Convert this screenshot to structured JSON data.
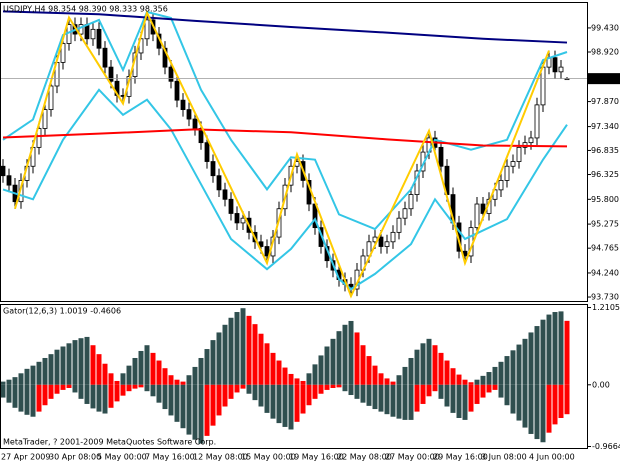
{
  "chart_data": [
    {
      "type": "candlestick",
      "title": "USDJPY,H4  98.354 98.390 98.333 98.356",
      "categories": [
        "27 Apr 2009",
        null,
        null,
        null,
        null,
        null,
        null,
        null,
        "30 Apr 08:00",
        null,
        null,
        null,
        null,
        null,
        null,
        null,
        "5 May 00:00",
        null,
        null,
        null,
        null,
        null,
        null,
        null,
        "7 May 16:00",
        null,
        null,
        null,
        null,
        null,
        null,
        null,
        "12 May 08:00",
        null,
        null,
        null,
        null,
        null,
        null,
        null,
        "15 May 00:00",
        null,
        null,
        null,
        null,
        null,
        null,
        null,
        "19 May 16:00",
        null,
        null,
        null,
        null,
        null,
        null,
        null,
        "22 May 08:00",
        null,
        null,
        null,
        null,
        null,
        null,
        null,
        "27 May 00:00",
        null,
        null,
        null,
        null,
        null,
        null,
        null,
        "29 May 16:00",
        null,
        null,
        null,
        null,
        null,
        null,
        null,
        "3 Jun 08:00",
        null,
        null,
        null,
        null,
        null,
        null,
        null,
        "4 Jun 00:00",
        null,
        null,
        null,
        null,
        null,
        null
      ],
      "open": [
        96.5,
        96.3,
        96.1,
        95.75,
        96.2,
        96.5,
        96.9,
        97.3,
        97.7,
        98.2,
        98.7,
        99.1,
        99.5,
        99.3,
        99.5,
        99.2,
        99.4,
        99.0,
        98.6,
        98.3,
        98.0,
        97.98,
        98.4,
        98.9,
        99.2,
        99.6,
        99.3,
        99.0,
        98.6,
        98.3,
        97.9,
        97.7,
        97.5,
        97.3,
        97.0,
        96.6,
        96.3,
        96.0,
        95.8,
        95.5,
        95.3,
        95.4,
        95.1,
        94.9,
        94.8,
        94.6,
        95.0,
        95.6,
        96.1,
        96.5,
        96.6,
        96.2,
        95.7,
        95.2,
        94.8,
        94.5,
        94.3,
        94.1,
        94.0,
        93.9,
        94.3,
        94.6,
        94.9,
        95.0,
        94.8,
        94.9,
        95.1,
        95.4,
        95.6,
        95.9,
        96.4,
        96.8,
        97.1,
        96.9,
        96.5,
        95.9,
        95.3,
        94.7,
        94.6,
        95.2,
        95.7,
        95.5,
        95.8,
        96.0,
        96.2,
        96.5,
        96.6,
        96.9,
        97.0,
        97.1,
        97.8,
        98.6,
        98.8,
        98.5,
        98.354
      ],
      "high": [
        96.65,
        96.45,
        96.25,
        96.35,
        96.65,
        97.05,
        97.45,
        97.85,
        98.35,
        98.85,
        99.25,
        99.65,
        99.65,
        99.65,
        99.65,
        99.55,
        99.55,
        99.15,
        98.75,
        98.45,
        98.15,
        98.55,
        99.05,
        99.35,
        99.75,
        99.75,
        99.45,
        99.15,
        98.75,
        98.45,
        98.05,
        97.85,
        97.65,
        97.45,
        97.15,
        96.75,
        96.45,
        96.15,
        95.95,
        95.65,
        95.55,
        95.55,
        95.25,
        95.05,
        94.95,
        95.15,
        95.75,
        96.25,
        96.65,
        96.75,
        96.75,
        96.35,
        95.85,
        95.35,
        94.95,
        94.65,
        94.45,
        94.25,
        94.15,
        94.45,
        94.75,
        95.05,
        95.15,
        95.15,
        95.05,
        95.25,
        95.55,
        95.75,
        96.05,
        96.55,
        96.95,
        97.25,
        97.25,
        97.05,
        96.65,
        96.05,
        95.45,
        94.85,
        95.35,
        95.85,
        95.85,
        95.95,
        96.15,
        96.35,
        96.65,
        96.75,
        97.05,
        97.15,
        97.25,
        97.95,
        98.75,
        98.95,
        98.95,
        98.75,
        98.39
      ],
      "low": [
        96.15,
        95.95,
        95.6,
        95.6,
        96.05,
        96.35,
        96.75,
        97.15,
        97.55,
        98.05,
        98.55,
        98.95,
        99.15,
        99.15,
        99.05,
        99.05,
        98.85,
        98.45,
        98.15,
        97.85,
        97.83,
        97.83,
        98.25,
        98.75,
        99.05,
        99.15,
        98.85,
        98.45,
        98.15,
        97.75,
        97.55,
        97.35,
        97.15,
        96.85,
        96.45,
        96.15,
        95.85,
        95.65,
        95.35,
        95.15,
        95.15,
        94.95,
        94.75,
        94.65,
        94.45,
        94.45,
        94.85,
        95.45,
        95.95,
        96.35,
        96.05,
        95.55,
        95.05,
        94.65,
        94.35,
        94.15,
        93.95,
        93.85,
        93.75,
        93.75,
        94.15,
        94.45,
        94.75,
        94.65,
        94.65,
        94.75,
        94.95,
        95.25,
        95.45,
        95.75,
        96.25,
        96.65,
        96.75,
        96.35,
        95.75,
        95.15,
        94.55,
        94.45,
        94.45,
        95.05,
        95.35,
        95.35,
        95.65,
        95.85,
        96.05,
        96.35,
        96.45,
        96.75,
        96.85,
        96.95,
        97.65,
        98.45,
        98.35,
        98.35,
        98.333
      ],
      "close": [
        96.3,
        96.1,
        95.75,
        96.2,
        96.5,
        96.9,
        97.3,
        97.7,
        98.2,
        98.7,
        99.1,
        99.5,
        99.3,
        99.5,
        99.2,
        99.4,
        99.0,
        98.6,
        98.3,
        98.0,
        97.98,
        98.4,
        98.9,
        99.2,
        99.6,
        99.3,
        99.0,
        98.6,
        98.3,
        97.9,
        97.7,
        97.5,
        97.3,
        97.0,
        96.6,
        96.3,
        96.0,
        95.8,
        95.5,
        95.3,
        95.4,
        95.1,
        94.9,
        94.8,
        94.6,
        95.0,
        95.6,
        96.1,
        96.5,
        96.6,
        96.2,
        95.7,
        95.2,
        94.8,
        94.5,
        94.3,
        94.1,
        94.0,
        93.9,
        94.3,
        94.6,
        94.9,
        95.0,
        94.8,
        94.9,
        95.1,
        95.4,
        95.6,
        95.9,
        96.4,
        96.8,
        97.1,
        96.9,
        96.5,
        95.9,
        95.3,
        94.7,
        94.6,
        95.2,
        95.7,
        95.5,
        95.8,
        96.0,
        96.2,
        96.5,
        96.6,
        96.9,
        97.0,
        97.1,
        97.8,
        98.6,
        98.8,
        98.5,
        98.6,
        98.356
      ],
      "up_color": "#ffffff",
      "down_color": "#000000",
      "ylim": [
        93.646,
        99.958
      ],
      "yticks": [
        {
          "value": 99.43,
          "label": "99.430"
        },
        {
          "value": 98.92,
          "label": "98.920"
        },
        {
          "value": 97.87,
          "label": "97.870"
        },
        {
          "value": 97.34,
          "label": "97.340"
        },
        {
          "value": 96.835,
          "label": "96.835"
        },
        {
          "value": 96.325,
          "label": "96.325"
        },
        {
          "value": 95.8,
          "label": "95.800"
        },
        {
          "value": 95.275,
          "label": "95.275"
        },
        {
          "value": 94.765,
          "label": "94.765"
        },
        {
          "value": 94.24,
          "label": "94.240"
        },
        {
          "value": 93.73,
          "label": "93.730"
        }
      ],
      "overlays": [
        {
          "color": "#33c6e6",
          "x": [
            0,
            5,
            10,
            16,
            20,
            24,
            28,
            33,
            38,
            44,
            48,
            52,
            56,
            62,
            68,
            72,
            78,
            84,
            90,
            94
          ],
          "values": [
            97.06,
            97.49,
            99.28,
            99.6,
            98.54,
            99.77,
            99.64,
            98.12,
            97.06,
            96.01,
            96.69,
            96.64,
            95.48,
            95.17,
            96.01,
            97.06,
            96.85,
            97.06,
            98.75,
            98.92
          ]
        },
        {
          "color": "#33c6e6",
          "x": [
            0,
            5,
            10,
            16,
            20,
            24,
            28,
            33,
            38,
            44,
            48,
            52,
            56,
            58,
            62,
            68,
            72,
            77,
            84,
            90,
            94
          ],
          "values": [
            96.01,
            95.8,
            97.06,
            98.12,
            97.59,
            97.91,
            97.28,
            96.12,
            94.96,
            94.32,
            94.75,
            95.38,
            94.11,
            93.9,
            94.22,
            94.85,
            95.8,
            94.96,
            95.38,
            96.64,
            97.38
          ]
        },
        {
          "color": "#000080",
          "x": [
            0,
            16,
            32,
            48,
            64,
            80,
            94
          ],
          "values": [
            99.78,
            99.72,
            99.58,
            99.45,
            99.33,
            99.2,
            99.12
          ]
        },
        {
          "color": "#ff0000",
          "x": [
            0,
            16,
            32,
            48,
            64,
            80,
            94
          ],
          "values": [
            97.11,
            97.19,
            97.28,
            97.22,
            97.07,
            96.94,
            96.92
          ]
        },
        {
          "color": "#ffcc00",
          "x": [
            2,
            11,
            20,
            24,
            44,
            49,
            58,
            71,
            77,
            91
          ],
          "values": [
            95.6,
            99.65,
            97.83,
            99.75,
            94.45,
            96.75,
            93.75,
            97.25,
            94.45,
            98.95
          ]
        }
      ]
    },
    {
      "type": "gator",
      "title": "Gator(12,6,3) 1.0019 -0.4606",
      "upper": [
        0.05,
        0.08,
        0.12,
        0.18,
        0.25,
        0.3,
        0.36,
        0.42,
        0.48,
        0.55,
        0.6,
        0.65,
        0.7,
        0.73,
        0.75,
        0.62,
        0.48,
        0.33,
        0.18,
        0.06,
        0.18,
        0.3,
        0.42,
        0.53,
        0.62,
        0.5,
        0.38,
        0.26,
        0.15,
        0.08,
        0.05,
        0.15,
        0.28,
        0.42,
        0.56,
        0.7,
        0.82,
        0.94,
        1.05,
        1.14,
        1.2,
        1.08,
        0.95,
        0.8,
        0.65,
        0.5,
        0.38,
        0.27,
        0.17,
        0.1,
        0.06,
        0.18,
        0.32,
        0.46,
        0.6,
        0.72,
        0.84,
        0.94,
        1.0,
        0.82,
        0.62,
        0.45,
        0.3,
        0.18,
        0.1,
        0.05,
        0.15,
        0.28,
        0.42,
        0.55,
        0.65,
        0.72,
        0.62,
        0.5,
        0.38,
        0.26,
        0.16,
        0.08,
        0.04,
        0.08,
        0.14,
        0.2,
        0.28,
        0.36,
        0.45,
        0.54,
        0.63,
        0.72,
        0.82,
        0.92,
        1.02,
        1.1,
        1.14,
        1.15,
        1.0019
      ],
      "lower": [
        -0.2,
        -0.28,
        -0.36,
        -0.42,
        -0.47,
        -0.5,
        -0.42,
        -0.32,
        -0.22,
        -0.14,
        -0.08,
        -0.05,
        -0.12,
        -0.22,
        -0.3,
        -0.37,
        -0.42,
        -0.45,
        -0.36,
        -0.26,
        -0.17,
        -0.1,
        -0.06,
        -0.04,
        -0.1,
        -0.18,
        -0.28,
        -0.38,
        -0.48,
        -0.58,
        -0.68,
        -0.78,
        -0.86,
        -0.92,
        -0.8,
        -0.64,
        -0.48,
        -0.34,
        -0.22,
        -0.12,
        -0.06,
        -0.14,
        -0.24,
        -0.34,
        -0.44,
        -0.53,
        -0.6,
        -0.66,
        -0.7,
        -0.58,
        -0.45,
        -0.32,
        -0.22,
        -0.14,
        -0.08,
        -0.05,
        -0.04,
        -0.1,
        -0.16,
        -0.22,
        -0.28,
        -0.33,
        -0.38,
        -0.42,
        -0.46,
        -0.5,
        -0.53,
        -0.55,
        -0.55,
        -0.42,
        -0.3,
        -0.18,
        -0.1,
        -0.22,
        -0.34,
        -0.44,
        -0.52,
        -0.55,
        -0.42,
        -0.3,
        -0.2,
        -0.12,
        -0.08,
        -0.2,
        -0.32,
        -0.45,
        -0.56,
        -0.67,
        -0.77,
        -0.85,
        -0.9,
        -0.75,
        -0.62,
        -0.52,
        -0.4606
      ],
      "up_color": "#2f4f4f",
      "down_color": "#ff0000",
      "ylim": [
        -0.99,
        1.25
      ],
      "yticks": [
        1.2105,
        {
          "value": 0,
          "label": "0.00"
        },
        -0.9664
      ],
      "note": "MetaTrader, ? 2001-2009 MetaQuotes Software Corp."
    }
  ]
}
